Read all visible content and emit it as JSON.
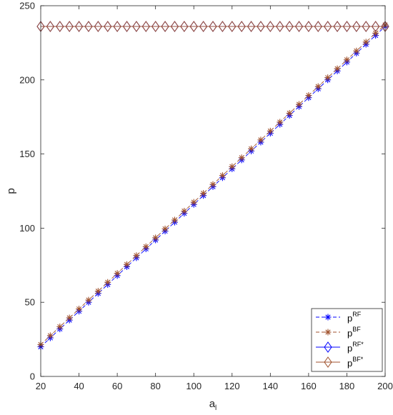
{
  "chart_data": {
    "type": "line",
    "xlabel": "a",
    "xlabel_sub": "l",
    "ylabel": "p",
    "xlim": [
      20,
      200
    ],
    "ylim": [
      0,
      250
    ],
    "xticks": [
      20,
      40,
      60,
      80,
      100,
      120,
      140,
      160,
      180,
      200
    ],
    "yticks": [
      0,
      50,
      100,
      150,
      200,
      250
    ],
    "grid": false,
    "legend_position": "bottom-right",
    "x": [
      20,
      25,
      30,
      35,
      40,
      45,
      50,
      55,
      60,
      65,
      70,
      75,
      80,
      85,
      90,
      95,
      100,
      105,
      110,
      115,
      120,
      125,
      130,
      135,
      140,
      145,
      150,
      155,
      160,
      165,
      170,
      175,
      180,
      185,
      190,
      195,
      200
    ],
    "series": [
      {
        "name": "RF",
        "color": "#0000ff",
        "line_style": "dashed",
        "marker": "asterisk",
        "values": [
          20,
          26,
          32,
          38,
          44,
          50,
          56,
          62,
          68,
          74,
          80,
          86,
          92,
          98,
          104,
          110,
          116,
          122,
          128,
          134,
          140,
          146,
          152,
          158,
          164,
          170,
          176,
          182,
          188,
          194,
          200,
          206,
          212,
          218,
          224,
          230,
          236
        ]
      },
      {
        "name": "BF",
        "color": "#a0522d",
        "line_style": "dashed",
        "marker": "asterisk",
        "values": [
          21.5,
          27.5,
          33.5,
          39.5,
          45.5,
          51.5,
          57.5,
          63.5,
          69.5,
          75.5,
          81.5,
          87.5,
          93.5,
          99.5,
          105.5,
          111.5,
          117.5,
          123.5,
          129.5,
          135.5,
          141.5,
          147.5,
          153.5,
          159.5,
          165.5,
          171.5,
          177.5,
          183.5,
          189.5,
          195.5,
          201.5,
          207.5,
          213.5,
          219.5,
          225.5,
          231.5,
          237
        ]
      },
      {
        "name": "RF*",
        "color": "#0000ff",
        "line_style": "solid",
        "marker": "diamond",
        "values": [
          236,
          236,
          236,
          236,
          236,
          236,
          236,
          236,
          236,
          236,
          236,
          236,
          236,
          236,
          236,
          236,
          236,
          236,
          236,
          236,
          236,
          236,
          236,
          236,
          236,
          236,
          236,
          236,
          236,
          236,
          236,
          236,
          236,
          236,
          236,
          236,
          236
        ]
      },
      {
        "name": "BF*",
        "color": "#a0522d",
        "line_style": "solid",
        "marker": "diamond",
        "values": [
          236,
          236,
          236,
          236,
          236,
          236,
          236,
          236,
          236,
          236,
          236,
          236,
          236,
          236,
          236,
          236,
          236,
          236,
          236,
          236,
          236,
          236,
          236,
          236,
          236,
          236,
          236,
          236,
          236,
          236,
          236,
          236,
          236,
          236,
          236,
          236,
          236
        ]
      }
    ],
    "legend": [
      {
        "base": "p",
        "sup": "RF"
      },
      {
        "base": "p",
        "sup": "BF"
      },
      {
        "base": "p",
        "sup": "RF*"
      },
      {
        "base": "p",
        "sup": "BF*"
      }
    ]
  }
}
